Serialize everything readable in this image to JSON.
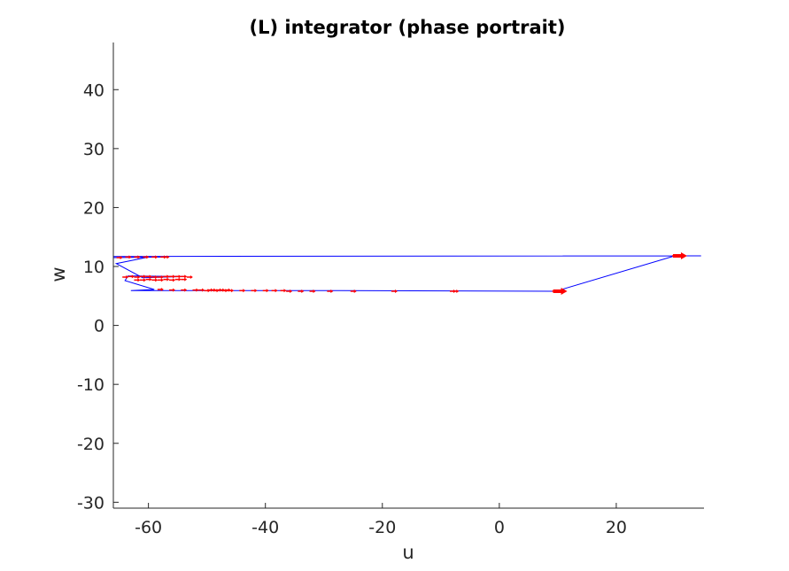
{
  "chart_data": {
    "type": "line",
    "title": "(L) integrator (phase portrait)",
    "xlabel": "u",
    "ylabel": "w",
    "xlim": [
      -66,
      35
    ],
    "ylim": [
      -31,
      48
    ],
    "xticks": [
      -60,
      -40,
      -20,
      0,
      20
    ],
    "yticks": [
      -30,
      -20,
      -10,
      0,
      10,
      20,
      30,
      40
    ],
    "xtick_labels": [
      "-60",
      "-40",
      "-20",
      "0",
      "20"
    ],
    "ytick_labels": [
      "-30",
      "-20",
      "-10",
      "0",
      "10",
      "20",
      "30",
      "40"
    ],
    "grid": false,
    "box": false,
    "trajectory_color": "#0000ff",
    "vector_color": "#ff0000",
    "series": [
      {
        "x": [
          -66,
          30,
          31,
          34.5,
          30,
          10,
          11,
          9.5,
          -27,
          -63,
          -59,
          -64,
          -63.5,
          -62,
          -56,
          -53.5,
          -61,
          -65.5,
          -60,
          -56.5,
          -66
        ],
        "y": [
          11.7,
          11.8,
          11.8,
          11.8,
          11.8,
          5.9,
          5.9,
          5.8,
          5.9,
          5.9,
          6.1,
          7.6,
          8.4,
          8.4,
          8.3,
          8.3,
          8.1,
          10.5,
          11.6,
          11.6,
          11.5
        ]
      }
    ],
    "vector_points": {
      "x": [
        -65,
        -63.5,
        -62,
        -60.5,
        -59,
        -57.5,
        -57,
        -64,
        -63,
        -62,
        -61,
        -60,
        -59,
        -58,
        -57,
        -56,
        -55,
        -54,
        -53,
        -62,
        -61,
        -60,
        -59,
        -58,
        -57,
        -56,
        -55,
        -54,
        -58,
        -56,
        -54,
        -52,
        -51,
        -50,
        -49.5,
        -49,
        -48.5,
        -48,
        -47.5,
        -47,
        -46.5,
        -46,
        -44,
        -42,
        -40,
        -38.5,
        -37,
        -36,
        -34,
        -32,
        -29,
        -25,
        -18,
        -8,
        -7.5,
        9.5,
        10,
        30,
        30.5,
        31
      ],
      "y": [
        11.5,
        11.6,
        11.6,
        11.6,
        11.6,
        11.6,
        11.6,
        8.2,
        8.3,
        8.2,
        8.3,
        8.3,
        8.2,
        8.2,
        8.3,
        8.3,
        8.3,
        8.3,
        8.2,
        7.7,
        7.7,
        7.8,
        7.7,
        7.7,
        7.8,
        7.7,
        7.8,
        7.8,
        6.1,
        6.0,
        6.0,
        6.0,
        6.0,
        5.9,
        6.0,
        6.0,
        5.9,
        6.0,
        6.0,
        5.9,
        6.0,
        5.9,
        5.9,
        5.9,
        5.9,
        5.9,
        5.9,
        5.8,
        5.8,
        5.8,
        5.8,
        5.8,
        5.8,
        5.8,
        5.8,
        5.8,
        5.8,
        11.8,
        11.8,
        11.8
      ]
    }
  }
}
